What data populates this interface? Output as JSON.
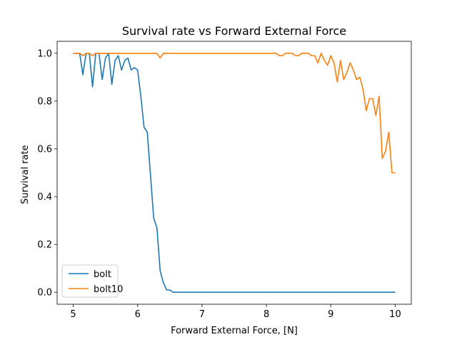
{
  "chart_data": {
    "type": "line",
    "title": "Survival rate vs Forward External Force",
    "xlabel": "Forward External Force, [N]",
    "ylabel": "Survival rate",
    "xlim": [
      4.75,
      10.25
    ],
    "ylim": [
      -0.05,
      1.05
    ],
    "xticks": [
      5,
      6,
      7,
      8,
      9,
      10
    ],
    "yticks": [
      0.0,
      0.2,
      0.4,
      0.6,
      0.8,
      1.0
    ],
    "xtick_labels": [
      "5",
      "6",
      "7",
      "8",
      "9",
      "10"
    ],
    "ytick_labels": [
      "0.0",
      "0.2",
      "0.4",
      "0.6",
      "0.8",
      "1.0"
    ],
    "grid": false,
    "legend_position": "lower-left",
    "series": [
      {
        "name": "bolt",
        "color": "#1f77b4",
        "x": [
          5.0,
          5.05,
          5.1,
          5.15,
          5.2,
          5.25,
          5.3,
          5.35,
          5.4,
          5.45,
          5.5,
          5.55,
          5.6,
          5.65,
          5.7,
          5.75,
          5.8,
          5.85,
          5.9,
          5.95,
          6.0,
          6.05,
          6.1,
          6.15,
          6.2,
          6.25,
          6.3,
          6.35,
          6.4,
          6.45,
          6.5,
          6.55,
          6.6,
          6.65,
          6.7,
          7.0,
          7.5,
          8.0,
          8.5,
          9.0,
          9.5,
          10.0
        ],
        "values": [
          1.0,
          1.0,
          1.0,
          0.91,
          1.0,
          1.0,
          0.86,
          1.0,
          1.0,
          0.89,
          0.98,
          1.0,
          0.87,
          0.97,
          0.99,
          0.93,
          0.97,
          0.98,
          0.93,
          0.94,
          0.93,
          0.82,
          0.69,
          0.67,
          0.49,
          0.31,
          0.27,
          0.09,
          0.04,
          0.01,
          0.01,
          0.0,
          0.0,
          0.0,
          0.0,
          0.0,
          0.0,
          0.0,
          0.0,
          0.0,
          0.0,
          0.0
        ]
      },
      {
        "name": "bolt10",
        "color": "#ff7f0e",
        "x": [
          5.0,
          5.1,
          5.15,
          5.2,
          5.25,
          5.3,
          5.35,
          5.4,
          5.45,
          5.5,
          6.0,
          6.3,
          6.35,
          6.4,
          6.45,
          7.0,
          8.0,
          8.15,
          8.2,
          8.25,
          8.3,
          8.4,
          8.45,
          8.5,
          8.55,
          8.6,
          8.65,
          8.7,
          8.75,
          8.8,
          8.85,
          8.9,
          8.95,
          9.0,
          9.05,
          9.1,
          9.15,
          9.2,
          9.25,
          9.3,
          9.35,
          9.4,
          9.45,
          9.5,
          9.55,
          9.6,
          9.65,
          9.7,
          9.75,
          9.8,
          9.85,
          9.9,
          9.95,
          10.0
        ],
        "values": [
          1.0,
          1.0,
          0.99,
          1.0,
          1.0,
          0.99,
          1.0,
          1.0,
          1.0,
          1.0,
          1.0,
          1.0,
          0.98,
          1.0,
          1.0,
          1.0,
          1.0,
          1.0,
          0.99,
          0.99,
          1.0,
          1.0,
          0.99,
          0.99,
          1.0,
          1.0,
          1.0,
          0.99,
          0.99,
          0.96,
          1.0,
          0.97,
          0.95,
          0.99,
          0.96,
          0.88,
          0.97,
          0.89,
          0.92,
          0.96,
          0.93,
          0.89,
          0.9,
          0.85,
          0.76,
          0.81,
          0.81,
          0.74,
          0.82,
          0.56,
          0.59,
          0.67,
          0.5,
          0.5
        ]
      }
    ]
  }
}
